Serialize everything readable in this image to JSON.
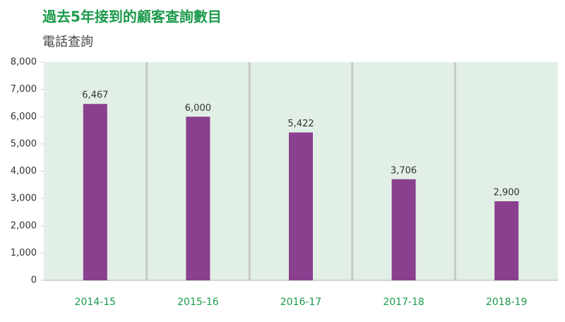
{
  "chart_data": {
    "type": "bar",
    "title": "過去5年接到的顧客查詢數目",
    "subtitle": "電話查詢",
    "categories": [
      "2014-15",
      "2015-16",
      "2016-17",
      "2017-18",
      "2018-19"
    ],
    "values": [
      6467,
      6000,
      5422,
      3706,
      2900
    ],
    "value_labels": [
      "6,467",
      "6,000",
      "5,422",
      "3,706",
      "2,900"
    ],
    "color": "#8a3f8f",
    "ylim": [
      0,
      8000
    ],
    "yticks": [
      0,
      {
        "value": 1000,
        "label": "1,000"
      },
      {
        "value": 2000,
        "label": "2,000"
      },
      {
        "value": 3000,
        "label": "3,000"
      },
      {
        "value": 4000,
        "label": "4,000"
      },
      {
        "value": 5000,
        "label": "5,000"
      },
      {
        "value": 6000,
        "label": "6,000"
      },
      {
        "value": 7000,
        "label": "7,000"
      },
      {
        "value": 8000,
        "label": "8,000"
      }
    ]
  }
}
